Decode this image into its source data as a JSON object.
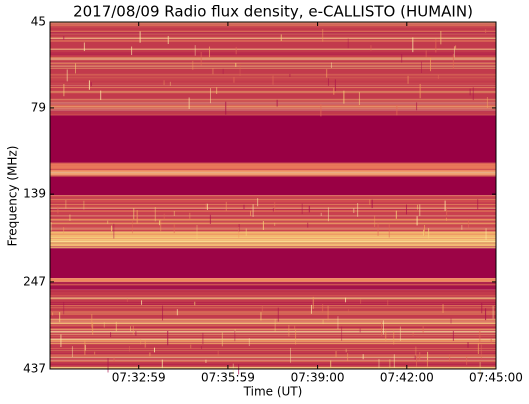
{
  "chart_data": {
    "type": "spectrogram",
    "title": "2017/08/09  Radio flux density, e-CALLISTO (HUMAIN)",
    "x_label": "Time (UT)",
    "y_label": "Frequency (MHz)",
    "xlim": [
      "07:30:00",
      "07:45:00"
    ],
    "xticks": [
      "07:32:59",
      "07:35:59",
      "07:39:00",
      "07:42:00",
      "07:45:00"
    ],
    "ylim": [
      45,
      437
    ],
    "yticks": [
      45,
      79,
      139,
      247,
      437
    ],
    "y_log": true,
    "y_inverted": true,
    "bands": [
      {
        "from": 45,
        "to": 83,
        "color": "#c23a4c"
      },
      {
        "from": 83,
        "to": 113,
        "color": "#990044"
      },
      {
        "from": 113,
        "to": 123,
        "color": "#e8785a"
      },
      {
        "from": 123,
        "to": 140,
        "color": "#990044"
      },
      {
        "from": 140,
        "to": 178,
        "color": "#c9404e"
      },
      {
        "from": 178,
        "to": 198,
        "color": "#f2b870"
      },
      {
        "from": 198,
        "to": 241,
        "color": "#9c0446"
      },
      {
        "from": 241,
        "to": 247,
        "color": "#ee8a5e"
      },
      {
        "from": 247,
        "to": 260,
        "color": "#a3124a"
      },
      {
        "from": 260,
        "to": 437,
        "color": "#c23a4c"
      }
    ]
  }
}
